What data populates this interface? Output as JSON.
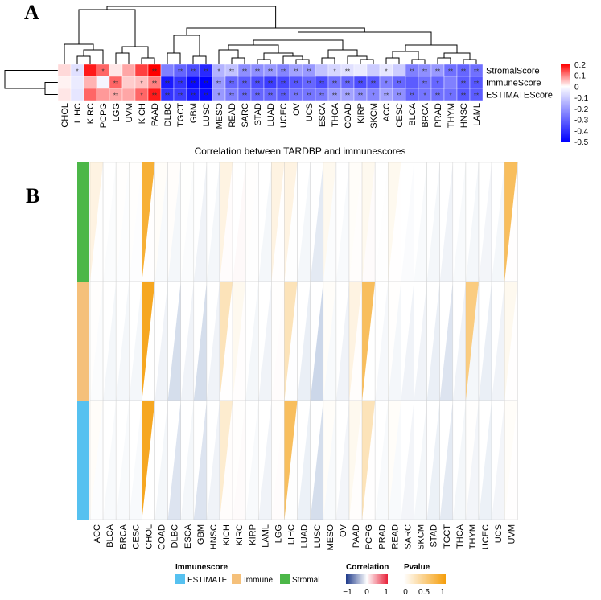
{
  "panel_a": {
    "letter": "A",
    "column_order": [
      "CHOL",
      "LIHC",
      "KIRC",
      "PCPG",
      "LGG",
      "UVM",
      "KICH",
      "PAAD",
      "DLBC",
      "TGCT",
      "GBM",
      "LUSC",
      "MESO",
      "READ",
      "SARC",
      "STAD",
      "LUAD",
      "UCEC",
      "OV",
      "UCS",
      "ESCA",
      "THCA",
      "COAD",
      "KIRP",
      "SKCM",
      "ACC",
      "CESC",
      "BLCA",
      "BRCA",
      "PRAD",
      "THYM",
      "HNSC",
      "LAML"
    ],
    "legend_ticks": [
      "0.2",
      "0.1",
      "0",
      "-0.1",
      "-0.2",
      "-0.3",
      "-0.4",
      "-0.5"
    ]
  },
  "panel_b": {
    "letter": "B",
    "column_order": [
      "ACC",
      "BLCA",
      "BRCA",
      "CESC",
      "CHOL",
      "COAD",
      "DLBC",
      "ESCA",
      "GBM",
      "HNSC",
      "KICH",
      "KIRC",
      "KIRP",
      "LAML",
      "LGG",
      "LIHC",
      "LUAD",
      "LUSC",
      "MESO",
      "OV",
      "PAAD",
      "PCPG",
      "PRAD",
      "READ",
      "SARC",
      "SKCM",
      "STAD",
      "TGCT",
      "THCA",
      "THYM",
      "UCEC",
      "UCS",
      "UVM"
    ],
    "legend": {
      "immunescore_title": "Immunescore",
      "immunescore_items": [
        {
          "label": "ESTIMATE",
          "color": "#56c1f0"
        },
        {
          "label": "Immune",
          "color": "#f5c07a"
        },
        {
          "label": "Stromal",
          "color": "#4cb748"
        }
      ],
      "correlation_title": "Correlation",
      "correlation_ticks": [
        "−1",
        "0",
        "1"
      ],
      "pvalue_title": "Pvalue",
      "pvalue_ticks": [
        "0",
        "0.5",
        "1"
      ]
    }
  },
  "chart_data": [
    {
      "type": "heatmap",
      "title": "",
      "columns": [
        "CHOL",
        "LIHC",
        "KIRC",
        "PCPG",
        "LGG",
        "UVM",
        "KICH",
        "PAAD",
        "DLBC",
        "TGCT",
        "GBM",
        "LUSC",
        "MESO",
        "READ",
        "SARC",
        "STAD",
        "LUAD",
        "UCEC",
        "OV",
        "UCS",
        "ESCA",
        "THCA",
        "COAD",
        "KIRP",
        "SKCM",
        "ACC",
        "CESC",
        "BLCA",
        "BRCA",
        "PRAD",
        "THYM",
        "HNSC",
        "LAML"
      ],
      "rows": [
        "StromalScore",
        "ImmuneScore",
        "ESTIMATEScore"
      ],
      "values": [
        [
          0.03,
          -0.06,
          0.18,
          0.12,
          0.02,
          0.07,
          0.15,
          0.2,
          -0.25,
          -0.3,
          -0.35,
          -0.42,
          -0.15,
          -0.12,
          -0.22,
          -0.22,
          -0.2,
          -0.24,
          -0.18,
          -0.2,
          -0.12,
          -0.08,
          -0.06,
          -0.04,
          -0.1,
          -0.05,
          -0.1,
          -0.25,
          -0.22,
          -0.2,
          -0.28,
          -0.3,
          -0.28
        ],
        [
          0.01,
          -0.04,
          0.06,
          -0.02,
          0.12,
          0.04,
          0.05,
          0.1,
          -0.45,
          -0.4,
          -0.48,
          -0.5,
          -0.2,
          -0.3,
          -0.32,
          -0.35,
          -0.38,
          -0.36,
          -0.33,
          -0.3,
          -0.35,
          -0.28,
          -0.3,
          -0.35,
          -0.33,
          -0.25,
          -0.3,
          -0.32,
          -0.28,
          -0.3,
          -0.25,
          -0.32,
          -0.33
        ],
        [
          0.02,
          -0.05,
          0.12,
          0.08,
          0.07,
          0.07,
          0.12,
          0.18,
          -0.4,
          -0.38,
          -0.45,
          -0.48,
          -0.2,
          -0.25,
          -0.3,
          -0.3,
          -0.3,
          -0.32,
          -0.27,
          -0.27,
          -0.26,
          -0.2,
          -0.18,
          -0.22,
          -0.24,
          -0.18,
          -0.22,
          -0.3,
          -0.27,
          -0.28,
          -0.28,
          -0.33,
          -0.32
        ]
      ],
      "significance": [
        [
          "",
          "*",
          "",
          "*",
          "",
          "",
          "",
          "**",
          "",
          "**",
          "**",
          "**",
          "*",
          "**",
          "**",
          "**",
          "**",
          "**",
          "**",
          "**",
          "",
          "*",
          "**",
          "",
          "",
          "*",
          "",
          "**",
          "**",
          "**",
          "**",
          "**",
          "**"
        ],
        [
          "",
          "",
          "",
          "",
          "**",
          "",
          "*",
          "**",
          "**",
          "**",
          "**",
          "**",
          "**",
          "**",
          "**",
          "**",
          "**",
          "**",
          "**",
          "**",
          "**",
          "**",
          "**",
          "**",
          "**",
          "*",
          "**",
          "",
          "**",
          "*",
          "",
          "**",
          "**"
        ],
        [
          "",
          "",
          "",
          "",
          "**",
          "",
          "*",
          "**",
          "**",
          "**",
          "**",
          "**",
          "*",
          "**",
          "**",
          "**",
          "**",
          "**",
          "**",
          "**",
          "**",
          "**",
          "**",
          "**",
          "*",
          "**",
          "**",
          "**",
          "*",
          "**",
          "*",
          "**",
          "**"
        ]
      ],
      "colorbar": {
        "min": -0.5,
        "max": 0.2,
        "low_color": "#0000ff",
        "mid_color": "#ffffff",
        "high_color": "#ff0000"
      }
    },
    {
      "type": "heatmap",
      "title": "Correlation between TARDBP and immunescores",
      "columns": [
        "ACC",
        "BLCA",
        "BRCA",
        "CESC",
        "CHOL",
        "COAD",
        "DLBC",
        "ESCA",
        "GBM",
        "HNSC",
        "KICH",
        "KIRC",
        "KIRP",
        "LAML",
        "LGG",
        "LIHC",
        "LUAD",
        "LUSC",
        "MESO",
        "OV",
        "PAAD",
        "PCPG",
        "PRAD",
        "READ",
        "SARC",
        "SKCM",
        "STAD",
        "TGCT",
        "THCA",
        "THYM",
        "UCEC",
        "UCS",
        "UVM"
      ],
      "rows": [
        "Stromal",
        "Immune",
        "ESTIMATE"
      ],
      "row_colors": [
        "#4cb748",
        "#f5c07a",
        "#56c1f0"
      ],
      "correlation": [
        [
          -0.05,
          -0.1,
          -0.08,
          -0.07,
          0.03,
          -0.15,
          -0.2,
          -0.1,
          -0.25,
          -0.2,
          0.1,
          0.15,
          -0.05,
          -0.2,
          0.05,
          -0.05,
          -0.2,
          -0.35,
          -0.1,
          -0.15,
          0.08,
          0.12,
          -0.05,
          0.05,
          -0.12,
          -0.15,
          -0.2,
          -0.25,
          -0.15,
          -0.2,
          -0.22,
          -0.2,
          0.05
        ],
        [
          -0.1,
          -0.2,
          -0.2,
          -0.2,
          0.01,
          -0.25,
          -0.45,
          -0.25,
          -0.45,
          -0.25,
          0.05,
          0.06,
          -0.2,
          -0.25,
          0.1,
          -0.03,
          -0.3,
          -0.5,
          -0.15,
          -0.25,
          0.08,
          -0.02,
          -0.18,
          -0.2,
          -0.25,
          -0.25,
          -0.3,
          -0.4,
          -0.25,
          -0.2,
          -0.3,
          -0.25,
          0.05
        ],
        [
          -0.08,
          -0.15,
          -0.15,
          -0.15,
          0.02,
          -0.2,
          -0.4,
          -0.2,
          -0.4,
          -0.25,
          0.08,
          0.12,
          -0.15,
          -0.25,
          0.1,
          -0.05,
          -0.28,
          -0.45,
          -0.15,
          -0.22,
          0.08,
          0.05,
          -0.15,
          -0.15,
          -0.22,
          -0.2,
          -0.28,
          -0.35,
          -0.2,
          -0.22,
          -0.28,
          -0.22,
          0.05
        ]
      ],
      "pvalue": [
        [
          0.3,
          0.01,
          0.05,
          0.05,
          0.9,
          0.1,
          0.08,
          0.02,
          0.01,
          0.01,
          0.3,
          0.01,
          0.05,
          0.01,
          0.3,
          0.3,
          0.01,
          0.01,
          0.2,
          0.01,
          0.1,
          0.2,
          0.01,
          0.2,
          0.01,
          0.01,
          0.01,
          0.01,
          0.01,
          0.01,
          0.01,
          0.01,
          0.8
        ],
        [
          0.05,
          0.01,
          0.01,
          0.01,
          0.95,
          0.01,
          0.01,
          0.01,
          0.01,
          0.01,
          0.5,
          0.2,
          0.01,
          0.01,
          0.05,
          0.5,
          0.01,
          0.01,
          0.1,
          0.01,
          0.3,
          0.8,
          0.01,
          0.05,
          0.01,
          0.01,
          0.01,
          0.01,
          0.01,
          0.7,
          0.01,
          0.01,
          0.2
        ],
        [
          0.1,
          0.01,
          0.01,
          0.01,
          0.95,
          0.01,
          0.01,
          0.01,
          0.01,
          0.01,
          0.4,
          0.05,
          0.01,
          0.01,
          0.05,
          0.8,
          0.01,
          0.01,
          0.1,
          0.01,
          0.2,
          0.5,
          0.01,
          0.1,
          0.01,
          0.01,
          0.01,
          0.01,
          0.01,
          0.05,
          0.01,
          0.01,
          0.1
        ]
      ]
    }
  ]
}
